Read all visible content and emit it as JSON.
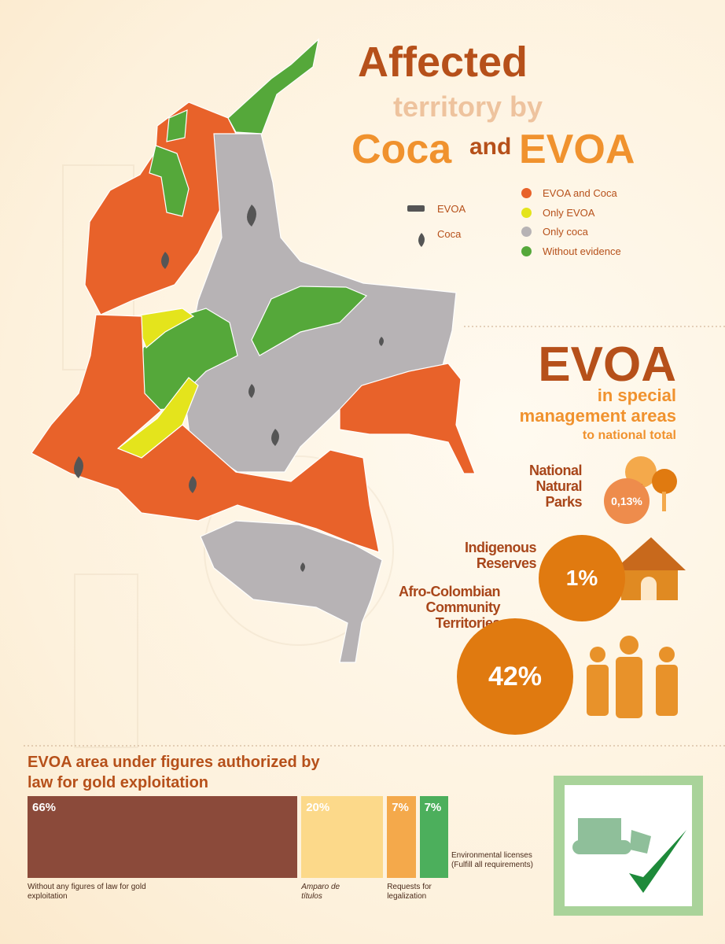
{
  "header": {
    "line1": "Affected",
    "line2": "territory by",
    "coca": "Coca",
    "and": "and",
    "evoa": "EVOA"
  },
  "map_legend": {
    "icons": [
      "EVOA",
      "Coca"
    ],
    "colors": [
      {
        "label": "EVOA and Coca",
        "color": "#e8622a"
      },
      {
        "label": "Only EVOA",
        "color": "#e4e41c"
      },
      {
        "label": "Only coca",
        "color": "#b7b3b5"
      },
      {
        "label": "Without evidence",
        "color": "#55a83a"
      }
    ]
  },
  "special_areas": {
    "title": "EVOA",
    "subtitle1": "in special",
    "subtitle2": "management areas",
    "subtitle3": "to national total",
    "items": [
      {
        "label": "National Natural Parks",
        "value": "0,13%"
      },
      {
        "label": "Indigenous Reserves",
        "value": "1%"
      },
      {
        "label": "Afro-Colombian Community Territories",
        "value": "42%"
      }
    ]
  },
  "gold_chart": {
    "type": "stacked-bar",
    "title": "EVOA area under figures authorized by law for gold exploitation",
    "categories": [
      "Without any figures of law for gold exploitation",
      "Amparo de títulos",
      "Requests for legalization",
      "Environmental licenses (Fulfill all requirements)"
    ],
    "values": [
      66,
      20,
      7,
      7
    ],
    "value_labels": [
      "66%",
      "20%",
      "7%",
      "7%"
    ],
    "colors": [
      "#8b4a3a",
      "#fcd98a",
      "#f4a94b",
      "#4caf5c"
    ]
  }
}
